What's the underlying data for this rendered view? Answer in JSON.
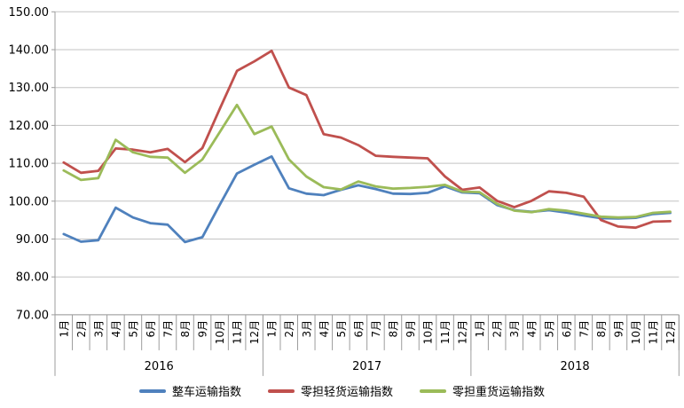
{
  "chart": {
    "y_axis_labels": [
      "150.00",
      "140.00",
      "130.00",
      "120.00",
      "110.00",
      "100.00",
      "90.00",
      "80.00",
      "70.00"
    ]
  },
  "colors": {
    "series_blue": "#4f81bd",
    "series_red": "#c0504d",
    "series_green": "#9bbb59",
    "gridline": "#c3c3c3",
    "axis": "#9d9d9d",
    "text": "#000000",
    "background": "#ffffff"
  },
  "chart_data": {
    "type": "line",
    "title": "",
    "xlabel": "",
    "ylabel": "",
    "ylim": [
      70,
      150
    ],
    "y_tick_interval": 10,
    "grid": "horizontal",
    "legend_position": "bottom",
    "month_labels": [
      "1月",
      "2月",
      "3月",
      "4月",
      "5月",
      "6月",
      "7月",
      "8月",
      "9月",
      "10月",
      "11月",
      "12月"
    ],
    "year_groups": [
      "2016",
      "2017",
      "2018"
    ],
    "series": [
      {
        "name": "整车运输指数",
        "color": "#4f81bd",
        "values": [
          91.3,
          89.3,
          89.7,
          98.3,
          95.7,
          94.2,
          93.8,
          89.2,
          90.5,
          99.0,
          107.3,
          109.6,
          111.8,
          103.4,
          102.0,
          101.6,
          103.0,
          104.2,
          103.2,
          102.0,
          101.9,
          102.2,
          103.9,
          102.3,
          102.1,
          99.0,
          97.6,
          97.2,
          97.6,
          97.0,
          96.2,
          95.5,
          95.4,
          95.6,
          96.6,
          96.9
        ]
      },
      {
        "name": "零担轻货运输指数",
        "color": "#c0504d",
        "values": [
          110.2,
          107.5,
          108.0,
          113.9,
          113.6,
          112.9,
          113.8,
          110.3,
          114.0,
          124.3,
          134.4,
          136.9,
          139.7,
          130.0,
          128.0,
          117.7,
          116.8,
          114.8,
          112.0,
          111.7,
          111.5,
          111.3,
          106.5,
          103.0,
          103.6,
          100.1,
          98.4,
          100.1,
          102.6,
          102.2,
          101.2,
          95.0,
          93.3,
          93.0,
          94.6,
          94.7
        ]
      },
      {
        "name": "零担重货运输指数",
        "color": "#9bbb59",
        "values": [
          108.1,
          105.6,
          106.1,
          116.2,
          112.9,
          111.7,
          111.5,
          107.5,
          111.0,
          118.2,
          125.4,
          117.7,
          119.7,
          111.0,
          106.5,
          103.7,
          103.1,
          105.2,
          103.9,
          103.3,
          103.5,
          103.8,
          104.3,
          102.5,
          102.4,
          99.3,
          97.5,
          97.1,
          97.9,
          97.5,
          96.7,
          95.9,
          95.7,
          95.8,
          96.9,
          97.2
        ]
      }
    ]
  }
}
